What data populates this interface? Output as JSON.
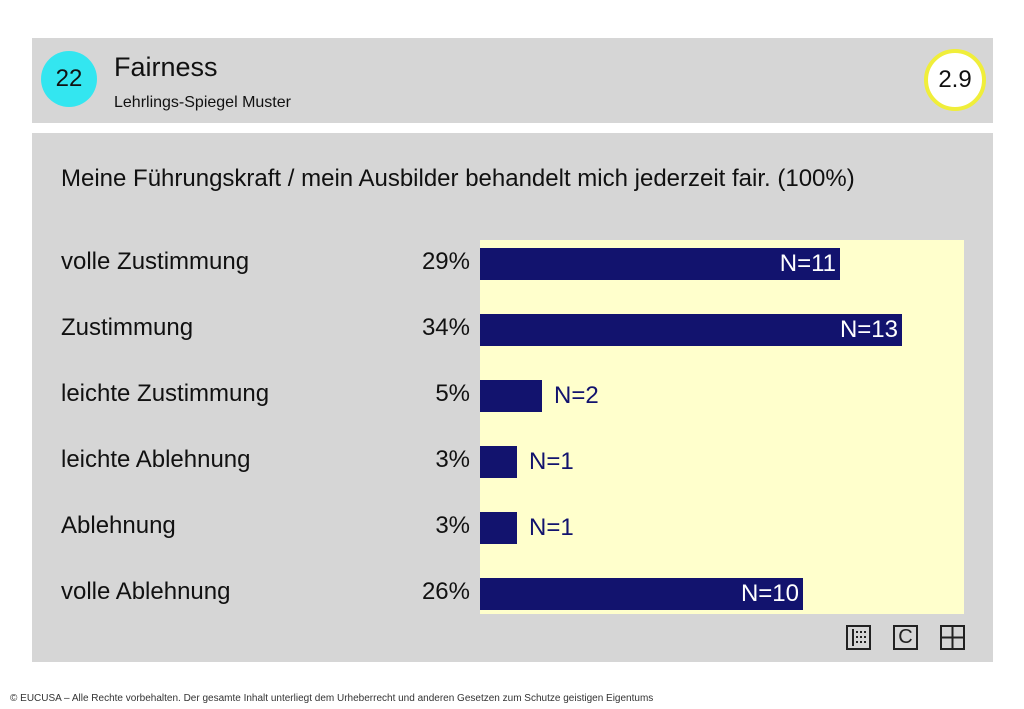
{
  "header": {
    "number": "22",
    "title": "Fairness",
    "subtitle": "Lehrlings-Spiegel Muster",
    "score": "2.9"
  },
  "colors": {
    "bar": "#12136e",
    "plot_bg": "#ffffcc",
    "panel_bg": "#d6d6d6",
    "badge": "#33e6f0",
    "score_ring": "#f0ee3a"
  },
  "chart_data": {
    "type": "bar",
    "orientation": "horizontal",
    "title": "Meine Führungskraft / mein Ausbilder behandelt mich jederzeit fair. (100%)",
    "categories": [
      "volle Zustimmung",
      "Zustimmung",
      "leichte Zustimmung",
      "leichte Ablehnung",
      "Ablehnung",
      "volle Ablehnung"
    ],
    "percent_labels": [
      "29%",
      "34%",
      "5%",
      "3%",
      "3%",
      "26%"
    ],
    "values": [
      29,
      34,
      5,
      3,
      3,
      26
    ],
    "n_labels": [
      "N=11",
      "N=13",
      "N=2",
      "N=1",
      "N=1",
      "N=10"
    ],
    "xlim": [
      0,
      39
    ],
    "grid": false
  },
  "toolbar": {
    "icons": [
      "list-icon",
      "c-icon",
      "grid-icon"
    ],
    "c_label": "C"
  },
  "footer": {
    "copyright": "© EUCUSA – Alle Rechte vorbehalten. Der gesamte Inhalt unterliegt dem Urheberrecht und anderen Gesetzen zum Schutze geistigen Eigentums"
  }
}
